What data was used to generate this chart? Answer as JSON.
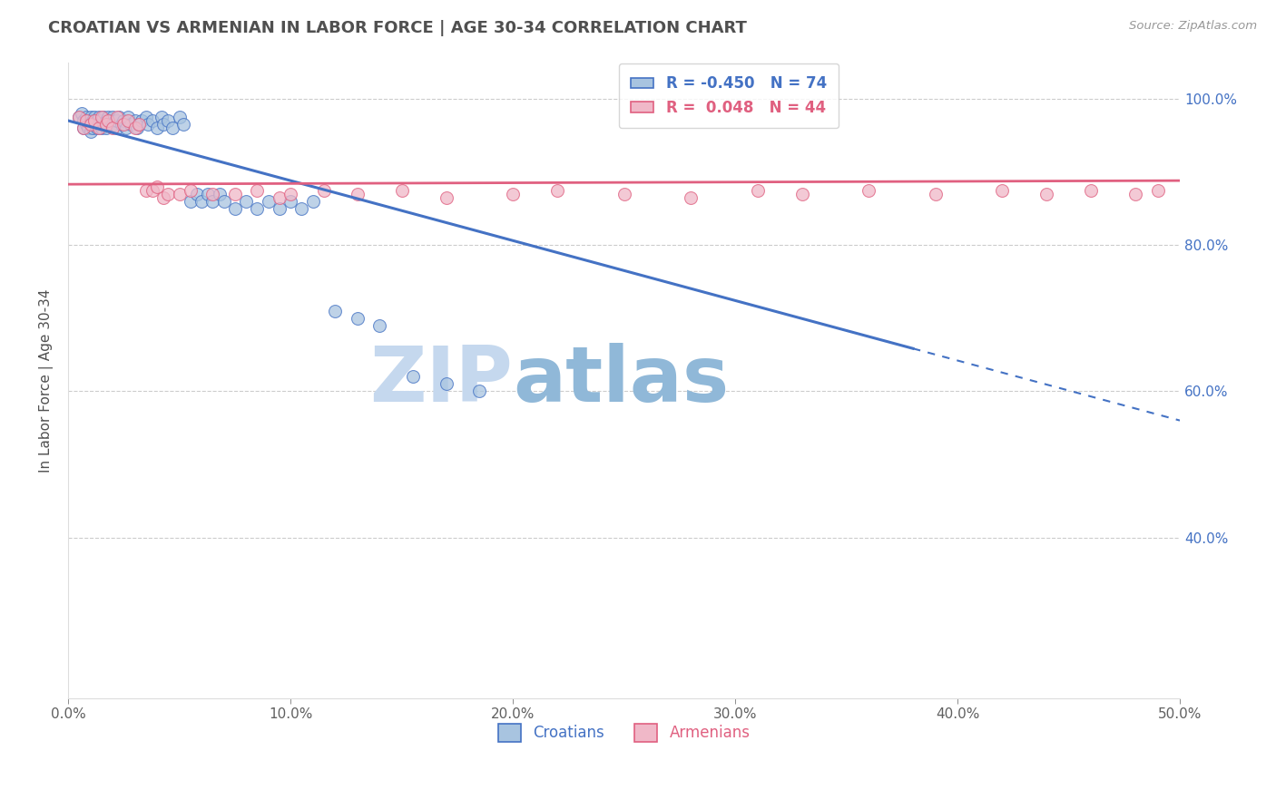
{
  "title": "CROATIAN VS ARMENIAN IN LABOR FORCE | AGE 30-34 CORRELATION CHART",
  "source": "Source: ZipAtlas.com",
  "ylabel": "In Labor Force | Age 30-34",
  "xlim": [
    0.0,
    0.5
  ],
  "ylim": [
    0.18,
    1.05
  ],
  "xtick_labels": [
    "0.0%",
    "10.0%",
    "20.0%",
    "30.0%",
    "40.0%",
    "50.0%"
  ],
  "xtick_vals": [
    0.0,
    0.1,
    0.2,
    0.3,
    0.4,
    0.5
  ],
  "ytick_labels": [
    "40.0%",
    "60.0%",
    "80.0%",
    "100.0%"
  ],
  "ytick_vals": [
    0.4,
    0.6,
    0.8,
    1.0
  ],
  "croatian_R": -0.45,
  "croatian_N": 74,
  "armenian_R": 0.048,
  "armenian_N": 44,
  "croatian_color": "#a8c4e0",
  "armenian_color": "#f0b8c8",
  "croatian_line_color": "#4472c4",
  "armenian_line_color": "#e06080",
  "background_color": "#ffffff",
  "grid_color": "#cccccc",
  "title_color": "#505050",
  "axis_label_color": "#505050",
  "tick_color": "#606060",
  "watermark_text1": "ZIP",
  "watermark_text2": "atlas",
  "watermark_color1": "#c5d8ee",
  "watermark_color2": "#90b8d8",
  "right_ytick_color": "#4472c4",
  "croatian_scatter_x": [
    0.005,
    0.006,
    0.007,
    0.007,
    0.008,
    0.008,
    0.009,
    0.009,
    0.01,
    0.01,
    0.01,
    0.011,
    0.011,
    0.012,
    0.012,
    0.013,
    0.013,
    0.014,
    0.014,
    0.015,
    0.015,
    0.016,
    0.016,
    0.017,
    0.017,
    0.018,
    0.018,
    0.019,
    0.02,
    0.02,
    0.021,
    0.022,
    0.022,
    0.023,
    0.024,
    0.025,
    0.026,
    0.027,
    0.028,
    0.03,
    0.031,
    0.032,
    0.033,
    0.035,
    0.036,
    0.038,
    0.04,
    0.042,
    0.043,
    0.045,
    0.047,
    0.05,
    0.052,
    0.055,
    0.058,
    0.06,
    0.063,
    0.065,
    0.068,
    0.07,
    0.075,
    0.08,
    0.085,
    0.09,
    0.095,
    0.1,
    0.105,
    0.11,
    0.12,
    0.13,
    0.14,
    0.155,
    0.17,
    0.185
  ],
  "croatian_scatter_y": [
    0.975,
    0.98,
    0.97,
    0.96,
    0.975,
    0.965,
    0.97,
    0.96,
    0.975,
    0.965,
    0.955,
    0.97,
    0.96,
    0.975,
    0.965,
    0.97,
    0.96,
    0.975,
    0.965,
    0.97,
    0.96,
    0.975,
    0.965,
    0.97,
    0.96,
    0.975,
    0.965,
    0.97,
    0.975,
    0.965,
    0.97,
    0.96,
    0.97,
    0.975,
    0.965,
    0.97,
    0.96,
    0.975,
    0.965,
    0.97,
    0.96,
    0.965,
    0.97,
    0.975,
    0.965,
    0.97,
    0.96,
    0.975,
    0.965,
    0.97,
    0.96,
    0.975,
    0.965,
    0.86,
    0.87,
    0.86,
    0.87,
    0.86,
    0.87,
    0.86,
    0.85,
    0.86,
    0.85,
    0.86,
    0.85,
    0.86,
    0.85,
    0.86,
    0.71,
    0.7,
    0.69,
    0.62,
    0.61,
    0.6
  ],
  "armenian_scatter_x": [
    0.005,
    0.007,
    0.008,
    0.01,
    0.012,
    0.014,
    0.015,
    0.017,
    0.018,
    0.02,
    0.022,
    0.025,
    0.027,
    0.03,
    0.032,
    0.035,
    0.038,
    0.04,
    0.043,
    0.045,
    0.05,
    0.055,
    0.065,
    0.075,
    0.085,
    0.095,
    0.1,
    0.115,
    0.13,
    0.15,
    0.17,
    0.2,
    0.22,
    0.25,
    0.28,
    0.31,
    0.33,
    0.36,
    0.39,
    0.42,
    0.44,
    0.46,
    0.48,
    0.49
  ],
  "armenian_scatter_y": [
    0.975,
    0.96,
    0.97,
    0.965,
    0.97,
    0.96,
    0.975,
    0.965,
    0.97,
    0.96,
    0.975,
    0.965,
    0.97,
    0.96,
    0.965,
    0.875,
    0.875,
    0.88,
    0.865,
    0.87,
    0.87,
    0.875,
    0.87,
    0.87,
    0.875,
    0.865,
    0.87,
    0.875,
    0.87,
    0.875,
    0.865,
    0.87,
    0.875,
    0.87,
    0.865,
    0.875,
    0.87,
    0.875,
    0.87,
    0.875,
    0.87,
    0.875,
    0.87,
    0.875
  ],
  "trend_line_solid_end_x": 0.38,
  "trend_line_dashed_end_x": 0.5,
  "trend_blue_y0": 0.97,
  "trend_blue_slope": -0.82,
  "trend_pink_y0": 0.883,
  "trend_pink_slope": 0.01
}
